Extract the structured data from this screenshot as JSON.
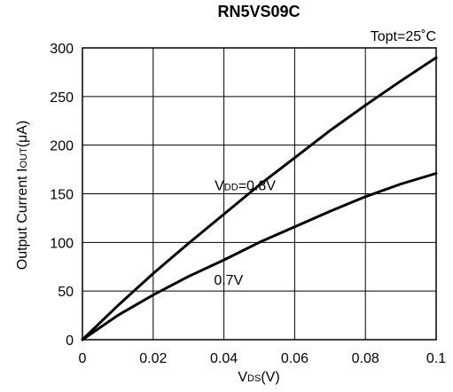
{
  "chart_data": {
    "type": "line",
    "title": "RN5VS09C",
    "condition": "Topt=25˚C",
    "xlabel": {
      "main": "V",
      "sub": "DS",
      "unit": "(V)"
    },
    "ylabel": {
      "main": "Output Current I",
      "sub": "OUT",
      "unit": "(μA)"
    },
    "xlim": [
      0,
      0.1
    ],
    "ylim": [
      0,
      300
    ],
    "grid": true,
    "x_ticks": [
      0,
      0.02,
      0.04,
      0.06,
      0.08,
      0.1
    ],
    "x_tick_labels": [
      "0",
      "0.02",
      "0.04",
      "0.06",
      "0.08",
      "0.1"
    ],
    "y_ticks": [
      0,
      50,
      100,
      150,
      200,
      250,
      300
    ],
    "y_tick_labels": [
      "0",
      "50",
      "100",
      "150",
      "200",
      "250",
      "300"
    ],
    "series": [
      {
        "name": "VDD=0.8V",
        "label_parts": {
          "pre": "V",
          "sub": "DD",
          "post": "=0.8V"
        },
        "x": [
          0,
          0.01,
          0.02,
          0.03,
          0.04,
          0.05,
          0.06,
          0.07,
          0.08,
          0.09,
          0.1
        ],
        "y": [
          0,
          35,
          68,
          99,
          129,
          159,
          187,
          215,
          241,
          266,
          290
        ]
      },
      {
        "name": "0.7V",
        "label_parts": {
          "pre": "",
          "sub": "",
          "post": "0.7V"
        },
        "x": [
          0,
          0.01,
          0.02,
          0.03,
          0.04,
          0.05,
          0.06,
          0.07,
          0.08,
          0.09,
          0.1
        ],
        "y": [
          0,
          25,
          46,
          65,
          82,
          100,
          116,
          132,
          147,
          160,
          171
        ]
      }
    ]
  }
}
